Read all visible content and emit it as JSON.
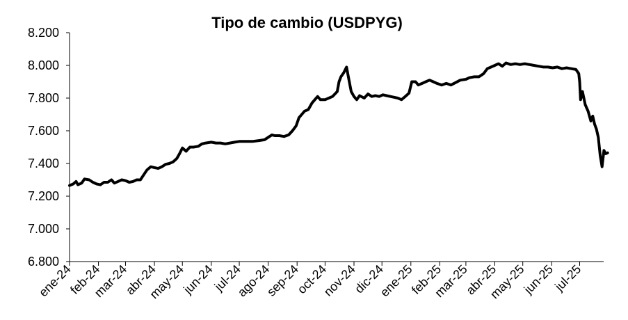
{
  "chart_data": {
    "type": "line",
    "title": "Tipo de cambio (USDPYG)",
    "xlabel": "",
    "ylabel": "",
    "ylim": [
      6800,
      8200
    ],
    "y_ticks": [
      "6.800",
      "7.000",
      "7.200",
      "7.400",
      "7.600",
      "7.800",
      "8.000",
      "8.200"
    ],
    "y_tick_values": [
      6800,
      7000,
      7200,
      7400,
      7600,
      7800,
      8000,
      8200
    ],
    "x_ticks": [
      "ene-24",
      "feb-24",
      "mar-24",
      "abr-24",
      "may-24",
      "jun-24",
      "jul-24",
      "ago-24",
      "sep-24",
      "oct-24",
      "nov-24",
      "dic-24",
      "ene-25",
      "feb-25",
      "mar-25",
      "abr-25",
      "may-25",
      "jun-25",
      "jul-25"
    ],
    "x_tick_values": [
      "2024-01-01",
      "2024-02-01",
      "2024-03-01",
      "2024-04-01",
      "2024-05-01",
      "2024-06-01",
      "2024-07-01",
      "2024-08-01",
      "2024-09-01",
      "2024-10-01",
      "2024-11-01",
      "2024-12-01",
      "2025-01-01",
      "2025-02-01",
      "2025-03-01",
      "2025-04-01",
      "2025-05-01",
      "2025-06-01",
      "2025-07-01"
    ],
    "grid": false,
    "series": [
      {
        "color": "#000000",
        "points": [
          [
            "2024-01-01",
            7265
          ],
          [
            "2024-01-05",
            7275
          ],
          [
            "2024-01-08",
            7290
          ],
          [
            "2024-01-10",
            7270
          ],
          [
            "2024-01-14",
            7280
          ],
          [
            "2024-01-17",
            7305
          ],
          [
            "2024-01-22",
            7300
          ],
          [
            "2024-01-26",
            7285
          ],
          [
            "2024-01-30",
            7275
          ],
          [
            "2024-02-03",
            7270
          ],
          [
            "2024-02-07",
            7285
          ],
          [
            "2024-02-11",
            7285
          ],
          [
            "2024-02-15",
            7300
          ],
          [
            "2024-02-18",
            7280
          ],
          [
            "2024-02-22",
            7290
          ],
          [
            "2024-02-26",
            7300
          ],
          [
            "2024-03-01",
            7295
          ],
          [
            "2024-03-05",
            7285
          ],
          [
            "2024-03-09",
            7290
          ],
          [
            "2024-03-13",
            7300
          ],
          [
            "2024-03-17",
            7300
          ],
          [
            "2024-03-21",
            7335
          ],
          [
            "2024-03-24",
            7360
          ],
          [
            "2024-03-28",
            7380
          ],
          [
            "2024-04-01",
            7375
          ],
          [
            "2024-04-05",
            7370
          ],
          [
            "2024-04-09",
            7380
          ],
          [
            "2024-04-13",
            7395
          ],
          [
            "2024-04-17",
            7400
          ],
          [
            "2024-04-21",
            7410
          ],
          [
            "2024-04-25",
            7430
          ],
          [
            "2024-04-28",
            7460
          ],
          [
            "2024-05-01",
            7495
          ],
          [
            "2024-05-05",
            7475
          ],
          [
            "2024-05-09",
            7500
          ],
          [
            "2024-05-13",
            7500
          ],
          [
            "2024-05-18",
            7505
          ],
          [
            "2024-05-22",
            7520
          ],
          [
            "2024-05-26",
            7525
          ],
          [
            "2024-06-01",
            7530
          ],
          [
            "2024-06-06",
            7525
          ],
          [
            "2024-06-11",
            7525
          ],
          [
            "2024-06-16",
            7520
          ],
          [
            "2024-06-21",
            7525
          ],
          [
            "2024-06-26",
            7530
          ],
          [
            "2024-07-01",
            7535
          ],
          [
            "2024-07-08",
            7535
          ],
          [
            "2024-07-15",
            7535
          ],
          [
            "2024-07-22",
            7540
          ],
          [
            "2024-07-28",
            7545
          ],
          [
            "2024-08-01",
            7560
          ],
          [
            "2024-08-05",
            7575
          ],
          [
            "2024-08-08",
            7570
          ],
          [
            "2024-08-13",
            7570
          ],
          [
            "2024-08-18",
            7565
          ],
          [
            "2024-08-23",
            7575
          ],
          [
            "2024-08-27",
            7600
          ],
          [
            "2024-08-31",
            7630
          ],
          [
            "2024-09-03",
            7680
          ],
          [
            "2024-09-06",
            7700
          ],
          [
            "2024-09-09",
            7720
          ],
          [
            "2024-09-13",
            7730
          ],
          [
            "2024-09-17",
            7770
          ],
          [
            "2024-09-20",
            7790
          ],
          [
            "2024-09-23",
            7810
          ],
          [
            "2024-09-26",
            7790
          ],
          [
            "2024-10-01",
            7790
          ],
          [
            "2024-10-05",
            7800
          ],
          [
            "2024-10-09",
            7810
          ],
          [
            "2024-10-14",
            7840
          ],
          [
            "2024-10-16",
            7900
          ],
          [
            "2024-10-18",
            7930
          ],
          [
            "2024-10-21",
            7955
          ],
          [
            "2024-10-24",
            7990
          ],
          [
            "2024-10-26",
            7930
          ],
          [
            "2024-10-29",
            7840
          ],
          [
            "2024-11-01",
            7810
          ],
          [
            "2024-11-04",
            7790
          ],
          [
            "2024-11-07",
            7815
          ],
          [
            "2024-11-12",
            7800
          ],
          [
            "2024-11-16",
            7825
          ],
          [
            "2024-11-20",
            7810
          ],
          [
            "2024-11-24",
            7815
          ],
          [
            "2024-11-28",
            7810
          ],
          [
            "2024-12-02",
            7820
          ],
          [
            "2024-12-06",
            7815
          ],
          [
            "2024-12-10",
            7810
          ],
          [
            "2024-12-14",
            7805
          ],
          [
            "2024-12-18",
            7800
          ],
          [
            "2024-12-22",
            7790
          ],
          [
            "2024-12-26",
            7810
          ],
          [
            "2024-12-30",
            7830
          ],
          [
            "2025-01-02",
            7900
          ],
          [
            "2025-01-06",
            7900
          ],
          [
            "2025-01-09",
            7880
          ],
          [
            "2025-01-13",
            7890
          ],
          [
            "2025-01-17",
            7900
          ],
          [
            "2025-01-21",
            7910
          ],
          [
            "2025-01-25",
            7900
          ],
          [
            "2025-01-29",
            7890
          ],
          [
            "2025-02-03",
            7880
          ],
          [
            "2025-02-08",
            7890
          ],
          [
            "2025-02-13",
            7880
          ],
          [
            "2025-02-18",
            7895
          ],
          [
            "2025-02-23",
            7910
          ],
          [
            "2025-03-01",
            7915
          ],
          [
            "2025-03-05",
            7925
          ],
          [
            "2025-03-10",
            7930
          ],
          [
            "2025-03-15",
            7930
          ],
          [
            "2025-03-20",
            7950
          ],
          [
            "2025-03-24",
            7980
          ],
          [
            "2025-03-28",
            7990
          ],
          [
            "2025-04-01",
            8000
          ],
          [
            "2025-04-05",
            8010
          ],
          [
            "2025-04-09",
            7995
          ],
          [
            "2025-04-13",
            8015
          ],
          [
            "2025-04-18",
            8005
          ],
          [
            "2025-04-23",
            8010
          ],
          [
            "2025-04-28",
            8005
          ],
          [
            "2025-05-03",
            8010
          ],
          [
            "2025-05-08",
            8005
          ],
          [
            "2025-05-13",
            8000
          ],
          [
            "2025-05-18",
            7995
          ],
          [
            "2025-05-23",
            7990
          ],
          [
            "2025-05-28",
            7990
          ],
          [
            "2025-06-02",
            7985
          ],
          [
            "2025-06-07",
            7990
          ],
          [
            "2025-06-12",
            7980
          ],
          [
            "2025-06-17",
            7985
          ],
          [
            "2025-06-22",
            7980
          ],
          [
            "2025-06-27",
            7975
          ],
          [
            "2025-06-30",
            7950
          ],
          [
            "2025-07-01",
            7900
          ],
          [
            "2025-07-02",
            7790
          ],
          [
            "2025-07-04",
            7840
          ],
          [
            "2025-07-07",
            7760
          ],
          [
            "2025-07-10",
            7720
          ],
          [
            "2025-07-13",
            7660
          ],
          [
            "2025-07-15",
            7690
          ],
          [
            "2025-07-17",
            7640
          ],
          [
            "2025-07-19",
            7610
          ],
          [
            "2025-07-21",
            7560
          ],
          [
            "2025-07-23",
            7450
          ],
          [
            "2025-07-25",
            7380
          ],
          [
            "2025-07-27",
            7480
          ],
          [
            "2025-07-29",
            7460
          ],
          [
            "2025-07-31",
            7465
          ]
        ]
      }
    ]
  }
}
